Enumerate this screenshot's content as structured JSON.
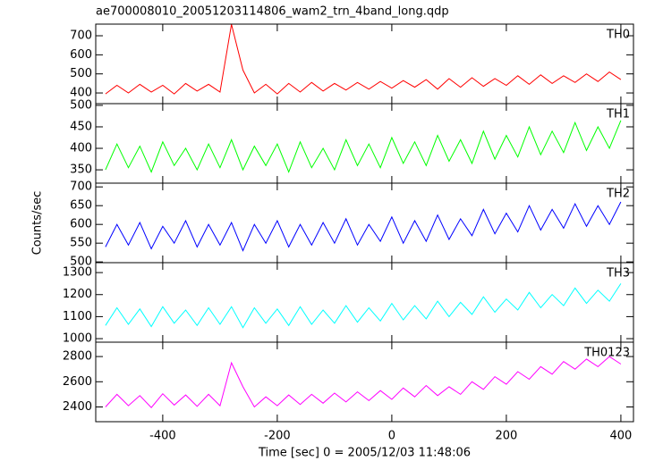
{
  "chart_data": [
    {
      "type": "line",
      "title": "ae700008010_20051203114806_wam2_trn_4band_long.qdp",
      "x": [
        -500,
        -480,
        -460,
        -440,
        -420,
        -400,
        -380,
        -360,
        -340,
        -320,
        -300,
        -280,
        -260,
        -240,
        -220,
        -200,
        -180,
        -160,
        -140,
        -120,
        -100,
        -80,
        -60,
        -40,
        -20,
        0,
        20,
        40,
        60,
        80,
        100,
        120,
        140,
        160,
        180,
        200,
        220,
        240,
        260,
        280,
        300,
        320,
        340,
        360,
        380,
        400
      ],
      "series": [
        {
          "name": "TH0",
          "color": "#ff0000",
          "values": [
            395,
            440,
            400,
            445,
            405,
            440,
            395,
            450,
            410,
            445,
            405,
            760,
            520,
            400,
            445,
            395,
            450,
            405,
            455,
            410,
            450,
            415,
            455,
            420,
            460,
            425,
            465,
            430,
            470,
            420,
            475,
            430,
            480,
            435,
            475,
            440,
            490,
            445,
            495,
            450,
            490,
            455,
            500,
            460,
            510,
            470
          ]
        }
      ],
      "xlim": [
        -517,
        422
      ],
      "ylim": [
        344,
        761
      ],
      "yticks": [
        400,
        500,
        600,
        700
      ]
    },
    {
      "type": "line",
      "x": [
        -500,
        -480,
        -460,
        -440,
        -420,
        -400,
        -380,
        -360,
        -340,
        -320,
        -300,
        -280,
        -260,
        -240,
        -220,
        -200,
        -180,
        -160,
        -140,
        -120,
        -100,
        -80,
        -60,
        -40,
        -20,
        0,
        20,
        40,
        60,
        80,
        100,
        120,
        140,
        160,
        180,
        200,
        220,
        240,
        260,
        280,
        300,
        320,
        340,
        360,
        380,
        400
      ],
      "series": [
        {
          "name": "TH1",
          "color": "#00ff00",
          "values": [
            350,
            410,
            355,
            405,
            345,
            415,
            360,
            400,
            350,
            410,
            355,
            420,
            350,
            405,
            360,
            410,
            345,
            415,
            355,
            400,
            350,
            420,
            360,
            410,
            355,
            425,
            365,
            415,
            360,
            430,
            370,
            420,
            365,
            440,
            375,
            430,
            380,
            450,
            385,
            440,
            390,
            460,
            395,
            450,
            400,
            465
          ]
        }
      ],
      "xlim": [
        -517,
        422
      ],
      "ylim": [
        319,
        504
      ],
      "yticks": [
        350,
        400,
        450,
        500
      ]
    },
    {
      "type": "line",
      "ylabel": "Counts/sec",
      "x": [
        -500,
        -480,
        -460,
        -440,
        -420,
        -400,
        -380,
        -360,
        -340,
        -320,
        -300,
        -280,
        -260,
        -240,
        -220,
        -200,
        -180,
        -160,
        -140,
        -120,
        -100,
        -80,
        -60,
        -40,
        -20,
        0,
        20,
        40,
        60,
        80,
        100,
        120,
        140,
        160,
        180,
        200,
        220,
        240,
        260,
        280,
        300,
        320,
        340,
        360,
        380,
        400
      ],
      "series": [
        {
          "name": "TH2",
          "color": "#0000ff",
          "values": [
            540,
            600,
            545,
            605,
            535,
            595,
            550,
            610,
            540,
            600,
            545,
            605,
            530,
            600,
            550,
            610,
            540,
            600,
            545,
            605,
            550,
            615,
            545,
            600,
            555,
            620,
            550,
            610,
            555,
            625,
            560,
            615,
            570,
            640,
            575,
            630,
            580,
            650,
            585,
            640,
            590,
            655,
            595,
            650,
            600,
            660
          ]
        }
      ],
      "xlim": [
        -517,
        422
      ],
      "ylim": [
        498,
        710
      ],
      "yticks": [
        500,
        550,
        600,
        650,
        700
      ]
    },
    {
      "type": "line",
      "x": [
        -500,
        -480,
        -460,
        -440,
        -420,
        -400,
        -380,
        -360,
        -340,
        -320,
        -300,
        -280,
        -260,
        -240,
        -220,
        -200,
        -180,
        -160,
        -140,
        -120,
        -100,
        -80,
        -60,
        -40,
        -20,
        0,
        20,
        40,
        60,
        80,
        100,
        120,
        140,
        160,
        180,
        200,
        220,
        240,
        260,
        280,
        300,
        320,
        340,
        360,
        380,
        400
      ],
      "series": [
        {
          "name": "TH3",
          "color": "#00ffff",
          "values": [
            1060,
            1140,
            1065,
            1135,
            1055,
            1145,
            1070,
            1130,
            1060,
            1140,
            1065,
            1145,
            1050,
            1140,
            1070,
            1135,
            1060,
            1145,
            1065,
            1130,
            1070,
            1150,
            1075,
            1140,
            1080,
            1160,
            1085,
            1150,
            1090,
            1170,
            1100,
            1165,
            1110,
            1190,
            1120,
            1180,
            1130,
            1210,
            1140,
            1200,
            1150,
            1230,
            1160,
            1220,
            1170,
            1250
          ]
        }
      ],
      "xlim": [
        -517,
        422
      ],
      "ylim": [
        984,
        1345
      ],
      "yticks": [
        1000,
        1100,
        1200,
        1300
      ]
    },
    {
      "type": "line",
      "xlabel": "Time [sec] 0 = 2005/12/03 11:48:06",
      "x": [
        -500,
        -480,
        -460,
        -440,
        -420,
        -400,
        -380,
        -360,
        -340,
        -320,
        -300,
        -280,
        -260,
        -240,
        -220,
        -200,
        -180,
        -160,
        -140,
        -120,
        -100,
        -80,
        -60,
        -40,
        -20,
        0,
        20,
        40,
        60,
        80,
        100,
        120,
        140,
        160,
        180,
        200,
        220,
        240,
        260,
        280,
        300,
        320,
        340,
        360,
        380,
        400
      ],
      "series": [
        {
          "name": "TH0123",
          "color": "#ff00ff",
          "values": [
            2400,
            2500,
            2410,
            2490,
            2395,
            2505,
            2415,
            2495,
            2405,
            2500,
            2410,
            2750,
            2560,
            2400,
            2480,
            2410,
            2495,
            2420,
            2500,
            2430,
            2510,
            2440,
            2520,
            2450,
            2530,
            2460,
            2550,
            2480,
            2570,
            2490,
            2560,
            2500,
            2600,
            2540,
            2640,
            2580,
            2680,
            2620,
            2720,
            2660,
            2760,
            2700,
            2780,
            2720,
            2800,
            2740
          ]
        }
      ],
      "xlim": [
        -517,
        422
      ],
      "ylim": [
        2283,
        2914
      ],
      "yticks": [
        2400,
        2600,
        2800
      ],
      "xticks": [
        -400,
        -200,
        0,
        200,
        400
      ]
    }
  ]
}
